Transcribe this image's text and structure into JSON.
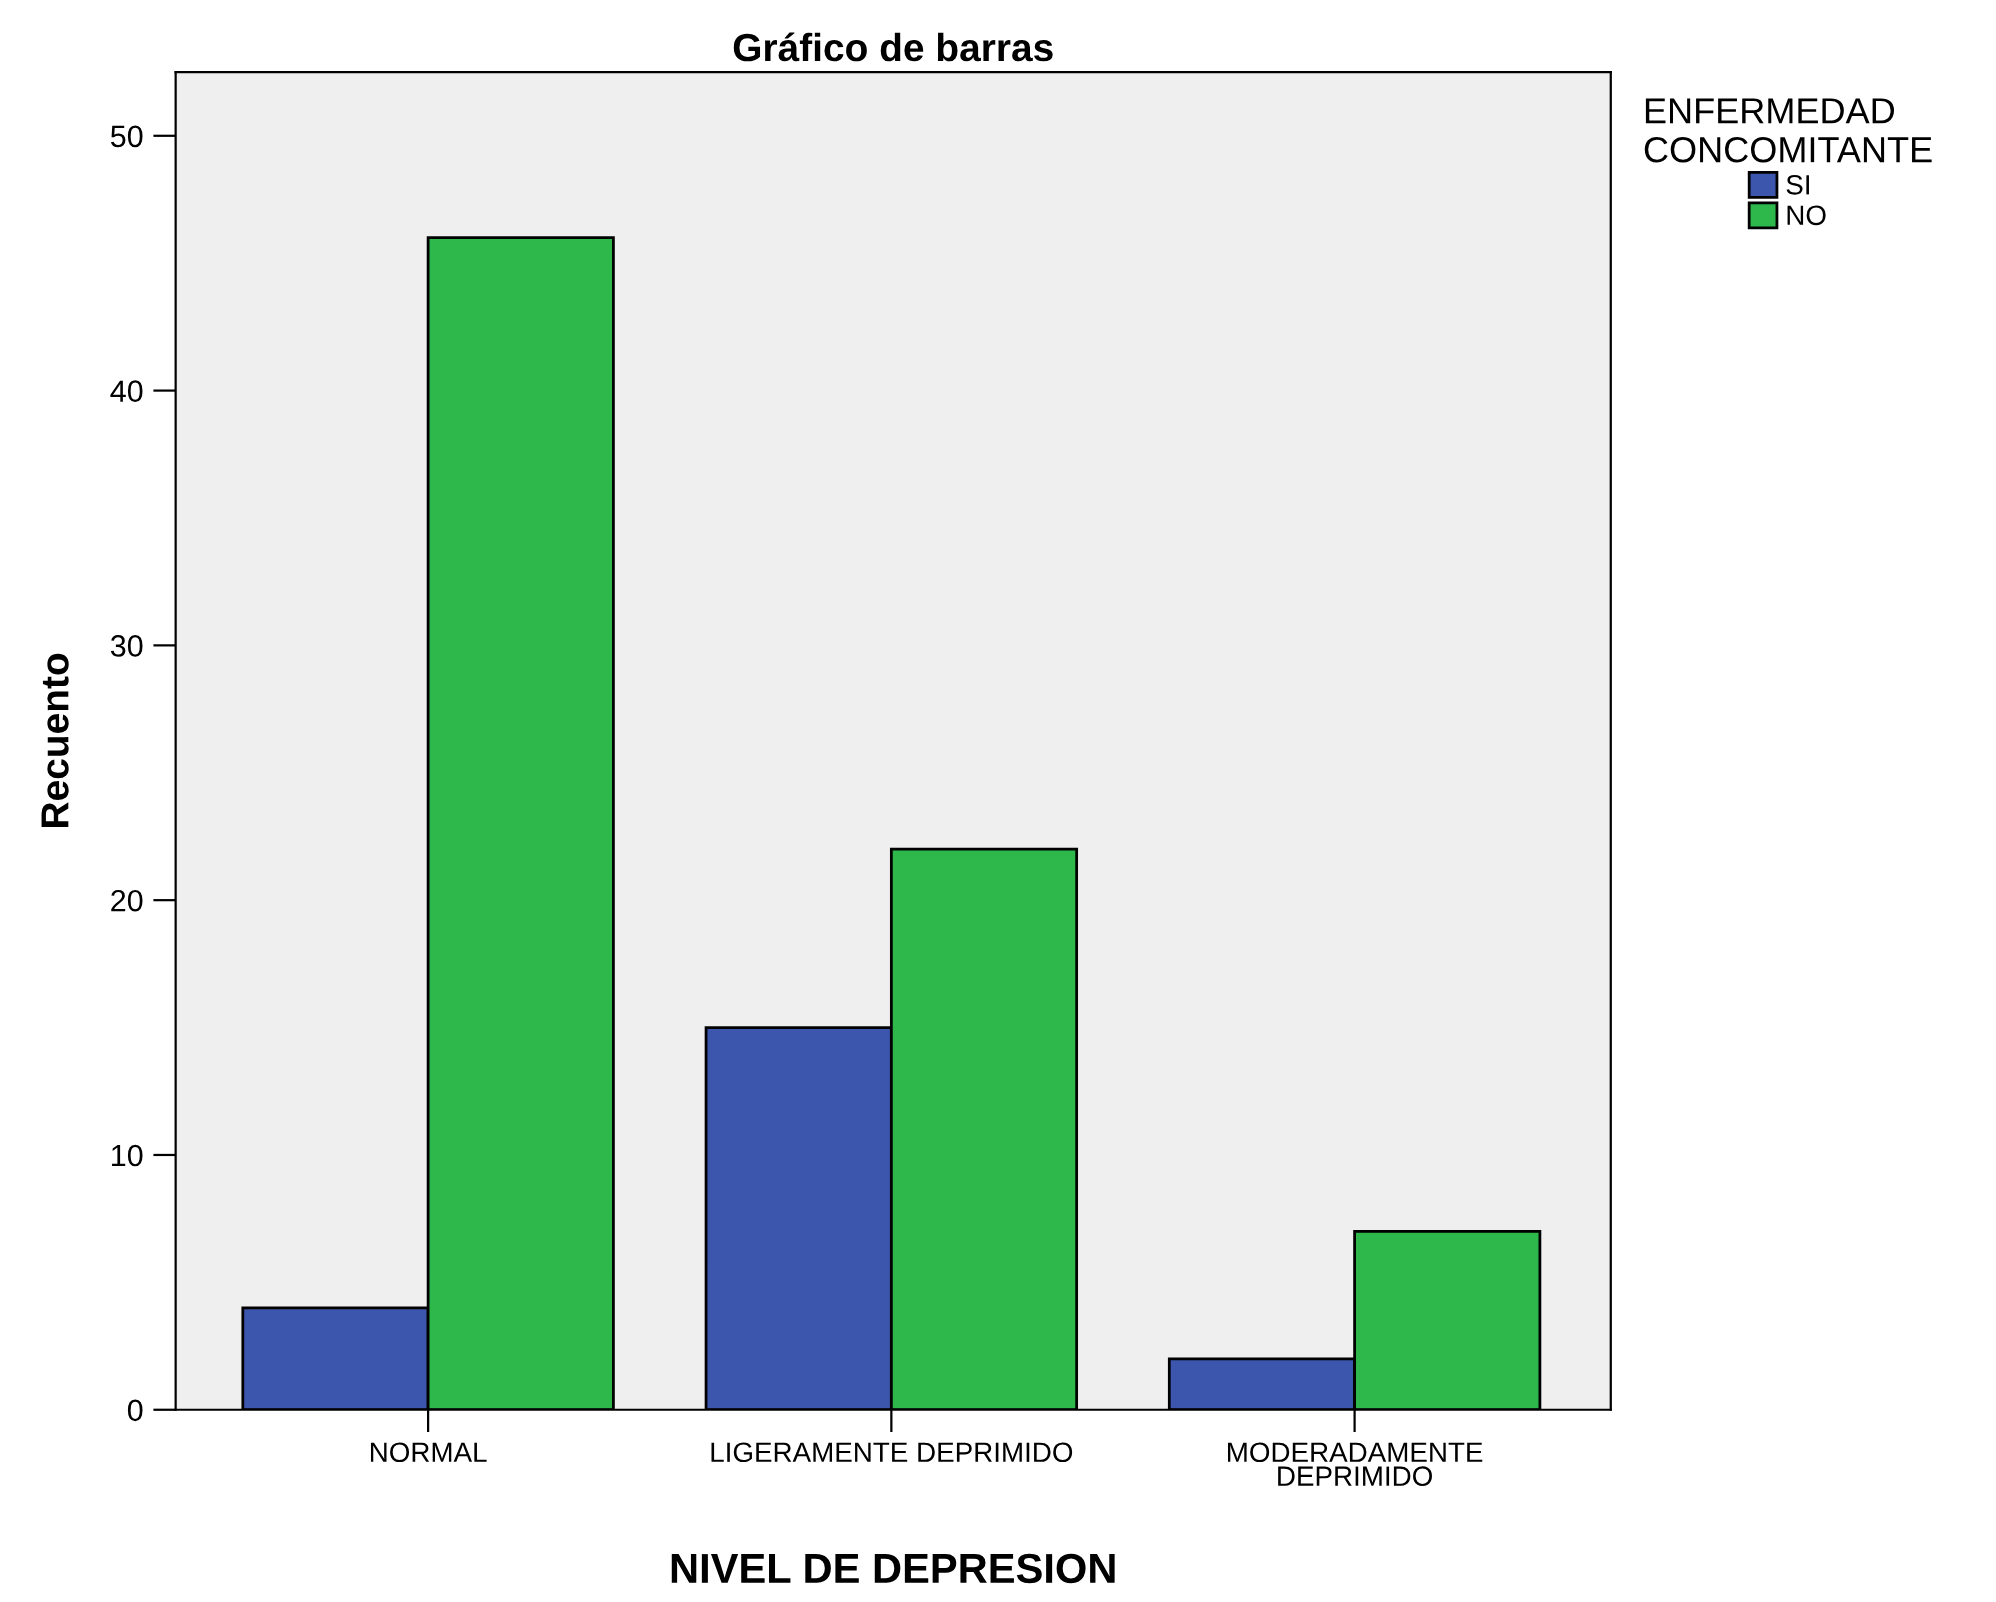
{
  "chart_data": {
    "type": "bar",
    "title": "Gráfico de barras",
    "xlabel": "NIVEL DE DEPRESION",
    "ylabel": "Recuento",
    "legend_title": "ENFERMEDAD\nCONCOMITANTE",
    "categories": [
      "NORMAL",
      "LIGERAMENTE DEPRIMIDO",
      "MODERADAMENTE\nDEPRIMIDO"
    ],
    "series": [
      {
        "name": "SI",
        "color": "#3d56ad",
        "values": [
          4,
          15,
          2
        ]
      },
      {
        "name": "NO",
        "color": "#2eb84b",
        "values": [
          46,
          22,
          7
        ]
      }
    ],
    "ylim": [
      0,
      52.5
    ],
    "yticks": [
      0,
      10,
      20,
      30,
      40,
      50
    ],
    "grid": false,
    "legend": "right"
  }
}
